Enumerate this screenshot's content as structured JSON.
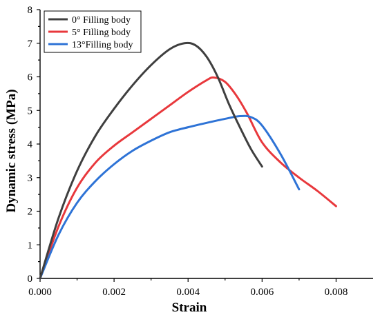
{
  "chart_data": {
    "type": "line",
    "title": "",
    "xlabel": "Strain",
    "ylabel": "Dynamic stress (MPa)",
    "xlim": [
      0,
      0.009
    ],
    "ylim": [
      0,
      8
    ],
    "x_ticks": [
      0,
      0.002,
      0.004,
      0.006,
      0.008
    ],
    "x_tick_labels": [
      "0.000",
      "0.002",
      "0.004",
      "0.006",
      "0.008"
    ],
    "y_ticks": [
      0,
      1,
      2,
      3,
      4,
      5,
      6,
      7,
      8
    ],
    "y_tick_labels": [
      "0",
      "1",
      "2",
      "3",
      "4",
      "5",
      "6",
      "7",
      "8"
    ],
    "grid": false,
    "legend_position": "top-left",
    "series": [
      {
        "name": "0° Filling body",
        "color": "#3f3f3f",
        "x": [
          0,
          0.0005,
          0.001,
          0.0015,
          0.002,
          0.0025,
          0.003,
          0.0035,
          0.0039,
          0.0042,
          0.0045,
          0.0048,
          0.0051,
          0.0054,
          0.0057,
          0.006
        ],
        "y": [
          0,
          1.8,
          3.2,
          4.25,
          5.05,
          5.75,
          6.35,
          6.82,
          7.0,
          6.94,
          6.6,
          6.0,
          5.2,
          4.5,
          3.85,
          3.33
        ]
      },
      {
        "name": "5° Filling body",
        "color": "#e8383c",
        "x": [
          0,
          0.0005,
          0.001,
          0.0015,
          0.002,
          0.0025,
          0.003,
          0.0035,
          0.004,
          0.0045,
          0.0047,
          0.005,
          0.0053,
          0.0056,
          0.006,
          0.0065,
          0.007,
          0.0075,
          0.008
        ],
        "y": [
          0,
          1.55,
          2.7,
          3.45,
          3.95,
          4.35,
          4.75,
          5.15,
          5.55,
          5.9,
          5.98,
          5.85,
          5.45,
          4.9,
          4.05,
          3.45,
          3.0,
          2.6,
          2.15
        ]
      },
      {
        "name": "13°Filling body",
        "color": "#2e73d6",
        "x": [
          0,
          0.0005,
          0.001,
          0.0015,
          0.002,
          0.0025,
          0.003,
          0.0035,
          0.004,
          0.0045,
          0.005,
          0.0054,
          0.0057,
          0.006,
          0.0065,
          0.007
        ],
        "y": [
          0,
          1.3,
          2.25,
          2.9,
          3.4,
          3.8,
          4.1,
          4.35,
          4.5,
          4.63,
          4.75,
          4.83,
          4.8,
          4.55,
          3.7,
          2.65
        ]
      }
    ]
  }
}
